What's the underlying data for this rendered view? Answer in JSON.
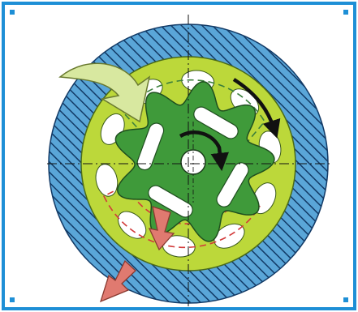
{
  "figure": {
    "subject": "gerotor-pump-cross-section",
    "colors": {
      "frame": "#1e8fd6",
      "background": "#ffffff",
      "housing": "#5aa6d8",
      "housing_hatch": "#123a66",
      "outer_rotor": "#bcd83a",
      "outer_rotor_light": "#d7e87a",
      "inner_rotor": "#3f9a3a",
      "inner_rotor_dark": "#2f7a2c",
      "pocket": "#ffffff",
      "inlet_arrow": "#d8e8a0",
      "outlet_arrow": "#e07a70",
      "rotation_arrow": "#111111",
      "centerline": "#111111",
      "inlet_port_outline": "#3b7f3b",
      "outlet_port_outline": "#d23a3a"
    },
    "inner_rotor_lobes": 9,
    "inner_rotor_slots": 4,
    "icons": [
      "inlet-arrow-icon",
      "outlet-arrow-icon",
      "rotation-arrow-icon"
    ]
  }
}
